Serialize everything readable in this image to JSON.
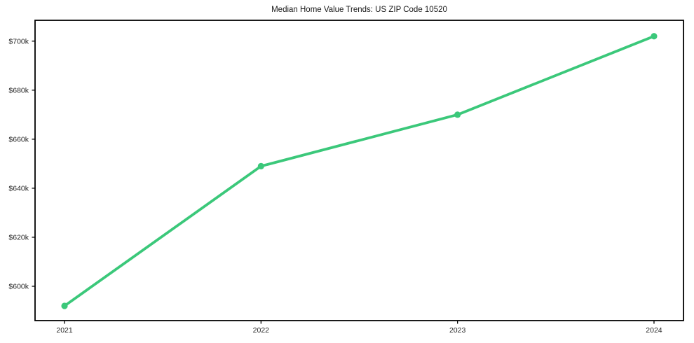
{
  "figure": {
    "background": "#ffffff"
  },
  "chart_data": {
    "type": "line",
    "title": "Median Home Value Trends: US ZIP Code 10520",
    "x": [
      2021,
      2022,
      2023,
      2024
    ],
    "series": [
      {
        "name": "Median Home Value",
        "values": [
          592000,
          649000,
          670000,
          702000
        ]
      }
    ],
    "xticks": [
      {
        "value": 2021,
        "label": "2021"
      },
      {
        "value": 2022,
        "label": "2022"
      },
      {
        "value": 2023,
        "label": "2023"
      },
      {
        "value": 2024,
        "label": "2024"
      }
    ],
    "yticks": [
      {
        "value": 600000,
        "label": "$600k"
      },
      {
        "value": 620000,
        "label": "$620k"
      },
      {
        "value": 640000,
        "label": "$640k"
      },
      {
        "value": 660000,
        "label": "$660k"
      },
      {
        "value": 680000,
        "label": "$680k"
      },
      {
        "value": 700000,
        "label": "$700k"
      }
    ],
    "xlim": [
      2020.85,
      2024.15
    ],
    "ylim": [
      586000,
      708500
    ],
    "xlabel": "",
    "ylabel": "",
    "grid": false,
    "legend_position": "none",
    "line_color": "#3bc87a",
    "marker": "circle",
    "axis_color": "#000000",
    "tick_label_color": "#262626"
  }
}
